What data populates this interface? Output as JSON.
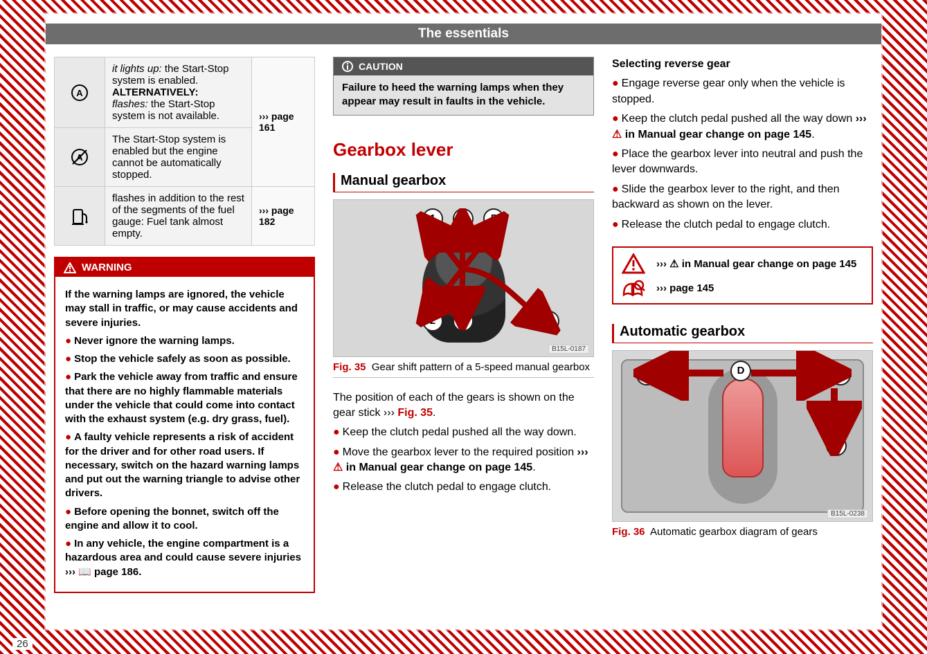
{
  "header": {
    "title": "The essentials"
  },
  "page_number": "26",
  "col1": {
    "indicator_rows": [
      {
        "icon": "start-stop-a",
        "text_html": "<span class='em'>it lights up:</span> the Start-Stop sys­tem is enabled. <b>ALTERNATIVE­LY:</b><br><span class='em'>flashes:</span> the Start-Stop system is not available.",
        "ref": "page 161",
        "ref_rowspan": 2
      },
      {
        "icon": "start-stop-off",
        "text_html": "The Start-Stop system is ena­bled but the engine cannot be automatically stopped."
      },
      {
        "icon": "fuel-pump",
        "text_html": "flashes in addition to the rest of the segments of the fuel gauge: Fuel tank almost empty.",
        "ref": "page 182"
      }
    ],
    "warning": {
      "heading": "WARNING",
      "lead": "If the warning lamps are ignored, the vehicle may stall in traffic, or may cause accidents and severe injuries.",
      "bullets": [
        "Never ignore the warning lamps.",
        "Stop the vehicle safely as soon as possible.",
        "Park the vehicle away from traffic and en­sure that there are no highly flammable ma­terials under the vehicle that could come into contact with the exhaust system (e.g. dry grass, fuel).",
        "A faulty vehicle represents a risk of acci­dent for the driver and for other road users. If necessary, switch on the hazard warning lamps and put out the warning triangle to ad­vise other drivers.",
        "Before opening the bonnet, switch off the engine and allow it to cool.",
        "In any vehicle, the engine compartment is a hazardous area and could cause severe inju­ries ››› 📖 page 186."
      ]
    }
  },
  "col2": {
    "caution": {
      "heading": "CAUTION",
      "body": "Failure to heed the warning lamps when they appear may result in faults in the vehicle."
    },
    "section_heading": "Gearbox lever",
    "sub_heading": "Manual gearbox",
    "fig35": {
      "code": "B15L-0187",
      "numbers": [
        "1",
        "2",
        "3",
        "4",
        "5",
        "R"
      ],
      "caption_label": "Fig. 35",
      "caption_text": "Gear shift pattern of a 5-speed man­ual gearbox"
    },
    "intro": "The position of each of the gears is shown on the gear stick ››› ",
    "intro_figref": "Fig. 35",
    "bullets": [
      "Keep the clutch pedal pushed all the way down.",
      "Move the gearbox lever to the required po­sition ››› ⚠ in Manual gear change on page 145.",
      "Release the clutch pedal to engage clutch."
    ]
  },
  "col3": {
    "reverse_heading": "Selecting reverse gear",
    "reverse_bullets": [
      "Engage reverse gear only when the vehicle is stopped.",
      "Keep the clutch pedal pushed all the way down ››› ⚠ in Manual gear change on page 145.",
      "Place the gearbox lever into neutral and push the lever downwards.",
      "Slide the gearbox lever to the right, and then backward as shown on the lever.",
      "Release the clutch pedal to engage clutch."
    ],
    "refpanel": {
      "row1": "››› ⚠ in Manual gear change on page 145",
      "row2": "››› page 145"
    },
    "auto_heading": "Automatic gearbox",
    "fig36": {
      "code": "B15L-0238",
      "labels": [
        "M",
        "D",
        "N",
        "R"
      ],
      "caption_label": "Fig. 36",
      "caption_text": "Automatic gearbox diagram of gears"
    }
  }
}
